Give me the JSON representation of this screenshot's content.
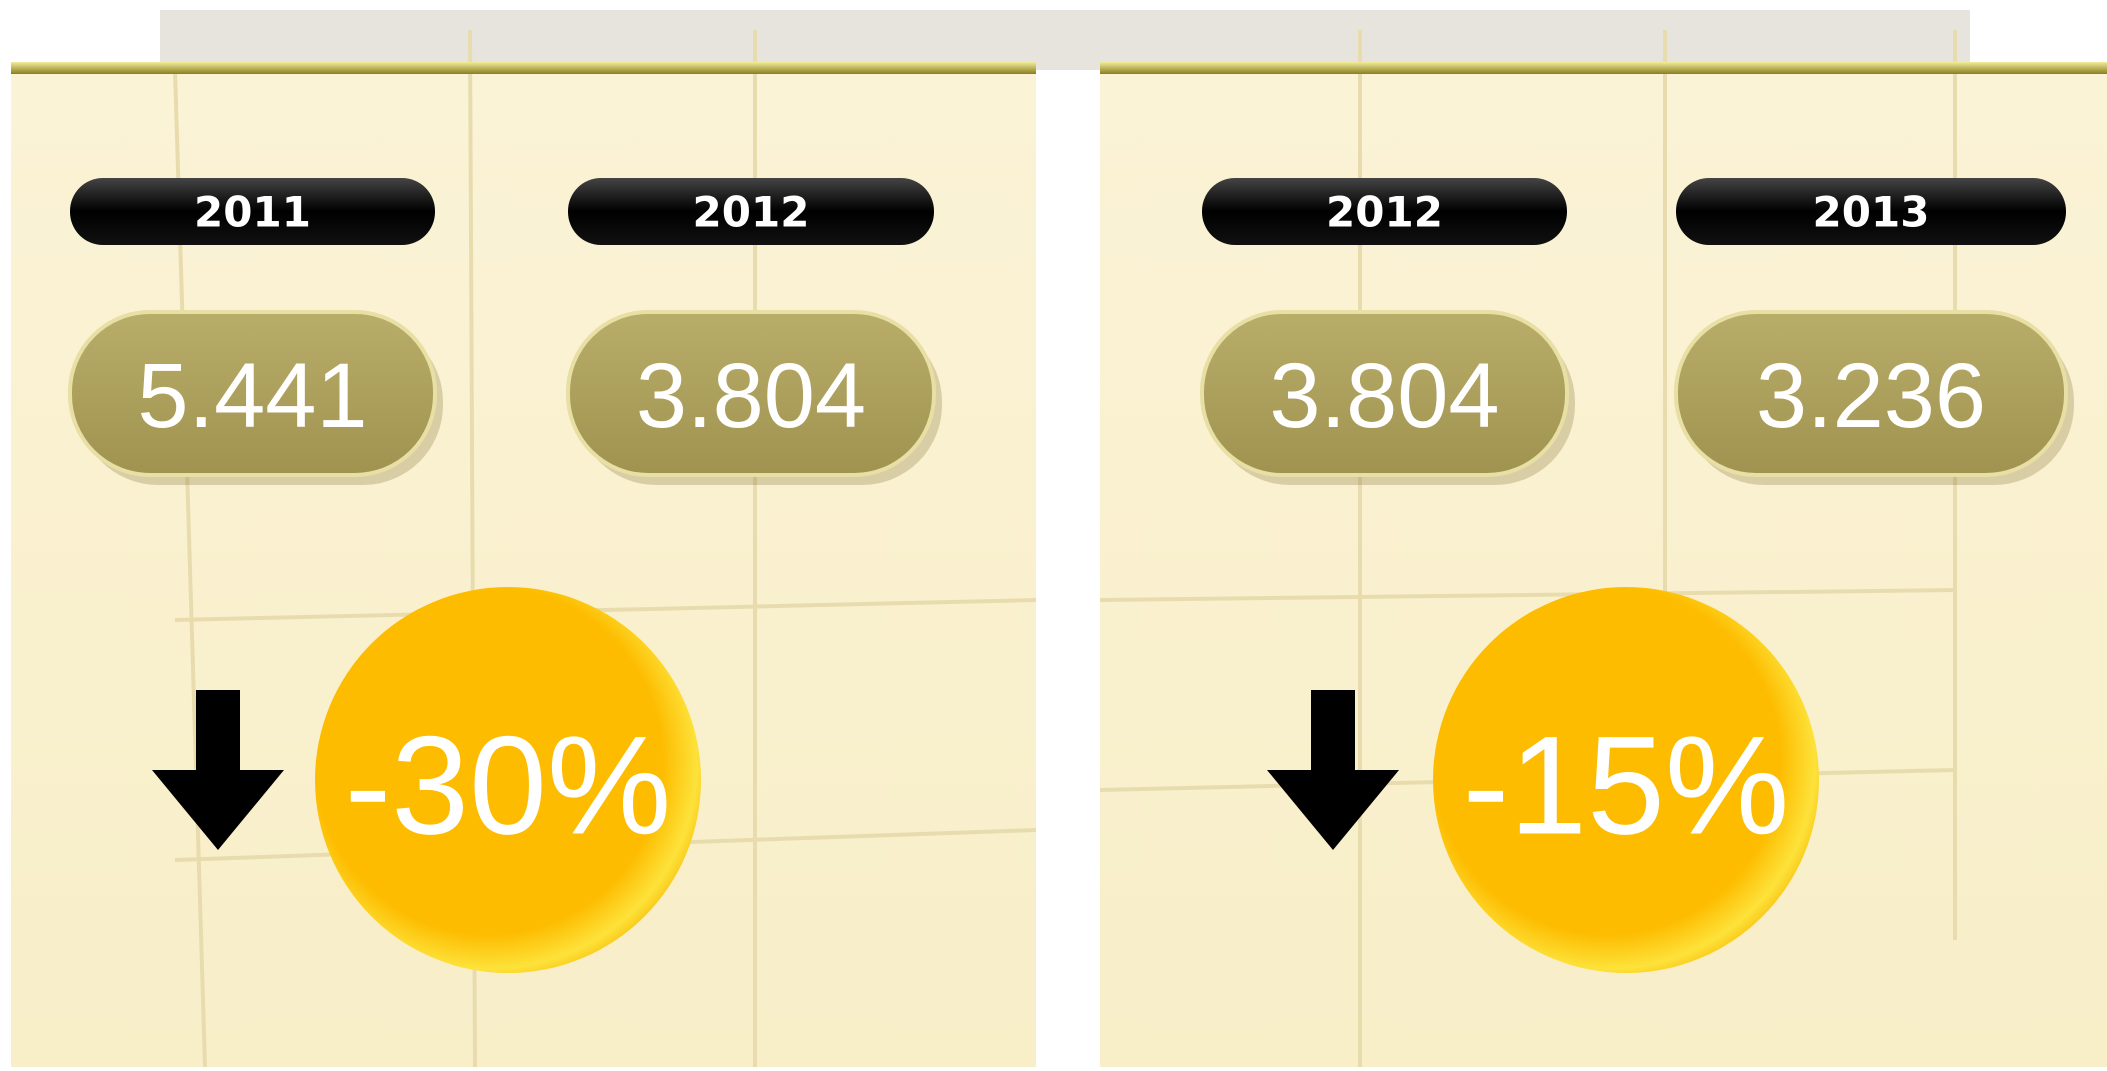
{
  "panels": [
    {
      "years": [
        {
          "label": "2011",
          "value": "5.441"
        },
        {
          "label": "2012",
          "value": "3.804"
        }
      ],
      "change": "-30%"
    },
    {
      "years": [
        {
          "label": "2012",
          "value": "3.804"
        },
        {
          "label": "2013",
          "value": "3.236"
        }
      ],
      "change": "-15%"
    }
  ]
}
